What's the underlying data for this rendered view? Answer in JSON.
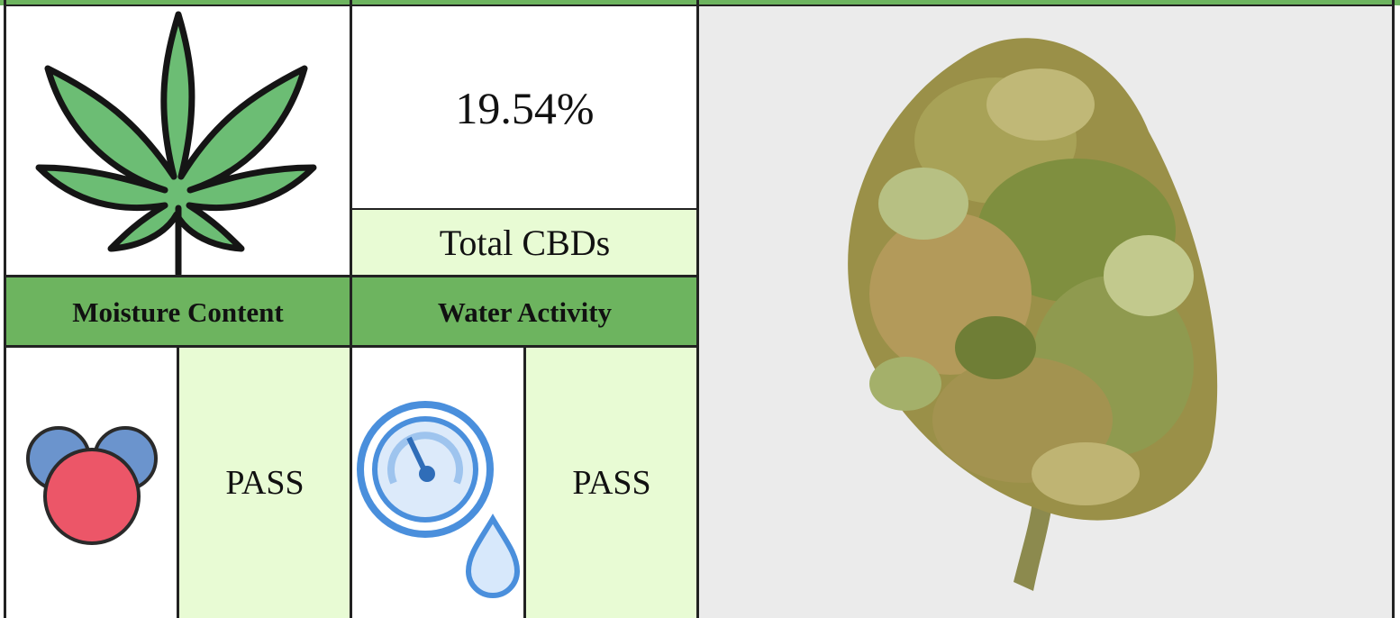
{
  "stats": {
    "value": "19.54%",
    "label": "Total CBDs"
  },
  "tests": [
    {
      "name": "Moisture Content",
      "result": "PASS"
    },
    {
      "name": "Water Activity",
      "result": "PASS"
    }
  ]
}
